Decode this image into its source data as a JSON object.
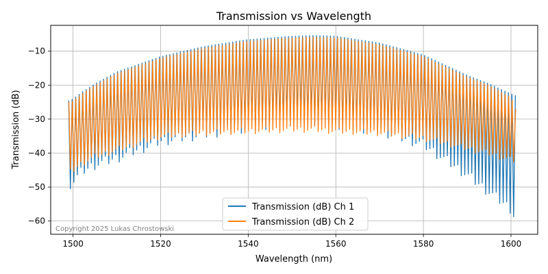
{
  "chart_data": {
    "type": "line",
    "title": "Transmission vs Wavelength",
    "xlabel": "Wavelength (nm)",
    "ylabel": "Transmission (dB)",
    "xlim": [
      1494.9,
      1606.1
    ],
    "ylim": [
      -63.9,
      -2.4
    ],
    "xticks": [
      1500,
      1520,
      1540,
      1560,
      1580,
      1600
    ],
    "yticks": [
      -10,
      -20,
      -30,
      -40,
      -50,
      -60
    ],
    "grid": true,
    "legend_position": "lower-center",
    "copyright": "Copyright 2025 Lukas Chrostowski",
    "sampling": {
      "x_start": 1499,
      "x_end": 1601,
      "fringe_period_nm": 0.8,
      "note": ""
    },
    "series": [
      {
        "name": "Transmission (dB) Ch 1",
        "color": "#1f77b4",
        "envelope_x": [
          1499,
          1500,
          1502,
          1505,
          1510,
          1520,
          1530,
          1540,
          1550,
          1555,
          1560,
          1570,
          1580,
          1590,
          1595,
          1600,
          1601
        ],
        "envelope_max_db": [
          -24.5,
          -24,
          -22,
          -19.5,
          -16,
          -11.5,
          -8.5,
          -6.5,
          -5.5,
          -5.3,
          -5.5,
          -7.5,
          -11,
          -17,
          -19.5,
          -22.5,
          -23
        ],
        "envelope_min_db": [
          -51,
          -50,
          -47,
          -45,
          -43,
          -38,
          -36,
          -34,
          -32,
          -32,
          -33,
          -35,
          -39,
          -48,
          -53,
          -58,
          -61
        ]
      },
      {
        "name": "Transmission (dB) Ch 2",
        "color": "#ff7f0e",
        "envelope_x": [
          1499,
          1500,
          1502,
          1505,
          1510,
          1520,
          1530,
          1540,
          1550,
          1555,
          1560,
          1570,
          1580,
          1590,
          1595,
          1600,
          1601
        ],
        "envelope_max_db": [
          -25,
          -24.5,
          -22.5,
          -20,
          -16.5,
          -12,
          -9,
          -7,
          -6,
          -5.8,
          -6,
          -8,
          -11.5,
          -17.5,
          -20,
          -23.5,
          -27
        ],
        "envelope_min_db": [
          -47,
          -46,
          -44,
          -42,
          -40,
          -36,
          -35,
          -34.5,
          -34,
          -34,
          -34.5,
          -35,
          -36.5,
          -39.5,
          -41,
          -43,
          -43
        ]
      }
    ]
  }
}
